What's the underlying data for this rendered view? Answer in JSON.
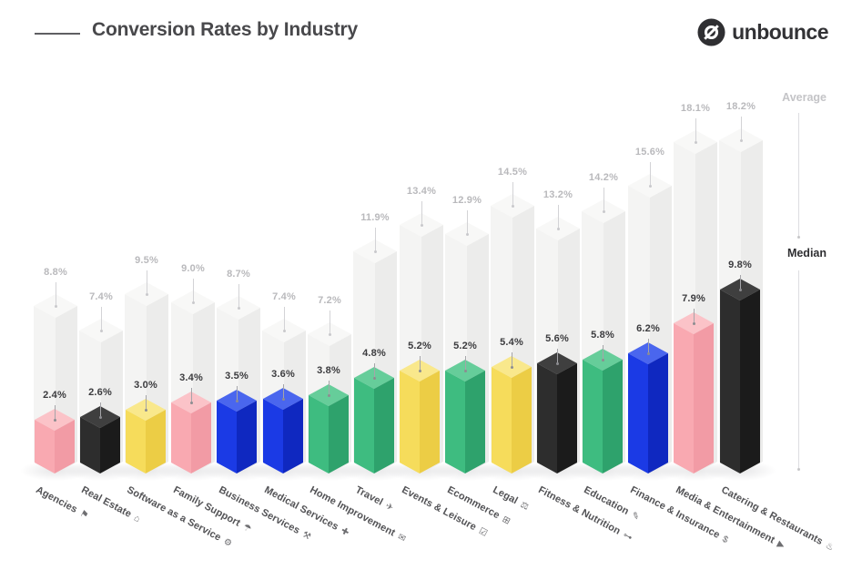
{
  "header": {
    "title": "Conversion Rates by Industry",
    "brand": "unbounce"
  },
  "legend": {
    "average_label": "Average",
    "median_label": "Median"
  },
  "chart_data": {
    "type": "bar",
    "title": "Conversion Rates by Industry",
    "value_suffix": "%",
    "grid": false,
    "legend_position": "right",
    "y_range": [
      0,
      18.2
    ],
    "categories": [
      "Agencies",
      "Real Estate",
      "Software as a Service",
      "Family Support",
      "Business Services",
      "Medical Services",
      "Home Improvement",
      "Travel",
      "Events & Leisure",
      "Ecommerce",
      "Legal",
      "Fitness & Nutrition",
      "Education",
      "Finance & Insurance",
      "Media & Entertainment",
      "Catering & Restaurants"
    ],
    "category_icons": [
      "megaphone",
      "house",
      "gear",
      "family",
      "briefcase",
      "medical",
      "mail",
      "plane",
      "event-check",
      "cart",
      "scales",
      "dumbbell",
      "education",
      "finance",
      "play",
      "food"
    ],
    "series": [
      {
        "name": "Average",
        "values": [
          8.8,
          7.4,
          9.5,
          9.0,
          8.7,
          7.4,
          7.2,
          11.9,
          13.4,
          12.9,
          14.5,
          13.2,
          14.2,
          15.6,
          18.1,
          18.2
        ]
      },
      {
        "name": "Median",
        "values": [
          2.4,
          2.6,
          3.0,
          3.4,
          3.5,
          3.6,
          3.8,
          4.8,
          5.2,
          5.2,
          5.4,
          5.6,
          5.8,
          6.2,
          7.9,
          9.8
        ],
        "colors": [
          "pink",
          "black",
          "yellow",
          "pink",
          "blue",
          "blue",
          "green",
          "green",
          "yellow",
          "green",
          "yellow",
          "black",
          "green",
          "blue",
          "pink",
          "black"
        ]
      }
    ],
    "palette": {
      "average": {
        "left": "#f4f4f3",
        "right": "#ececeb",
        "top": "#f8f8f7"
      },
      "pink": {
        "left": "#f9a9b1",
        "right": "#f29ba5",
        "top": "#fbc3c8"
      },
      "black": {
        "left": "#2d2d2d",
        "right": "#1b1b1b",
        "top": "#3f3f3f"
      },
      "yellow": {
        "left": "#f6dc5b",
        "right": "#eccd45",
        "top": "#f9e88c"
      },
      "blue": {
        "left": "#1b3ae5",
        "right": "#0f28c0",
        "top": "#4a66ee"
      },
      "green": {
        "left": "#3ebc80",
        "right": "#2ea26c",
        "top": "#66cd9a"
      }
    },
    "icon_glyphs": {
      "megaphone": "⚑",
      "house": "⌂",
      "gear": "⚙",
      "family": "☂",
      "briefcase": "⚒",
      "medical": "✚",
      "mail": "✉",
      "plane": "✈",
      "event-check": "☑",
      "cart": "⊞",
      "scales": "⚖",
      "dumbbell": "⊶",
      "education": "✎",
      "finance": "$",
      "play": "▶",
      "food": "♨"
    }
  }
}
